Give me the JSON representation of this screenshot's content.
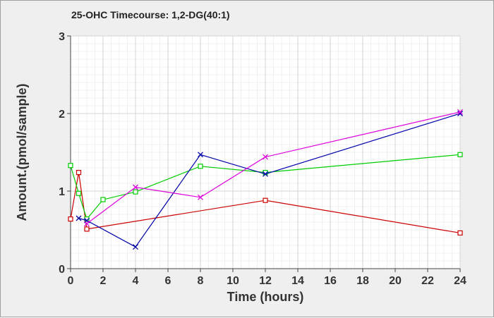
{
  "chart_data": {
    "type": "line",
    "title": "25-OHC Timecourse: 1,2-DG(40:1)",
    "xlabel": "Time (hours)",
    "ylabel": "Amount.(pmol/sample)",
    "xlim": [
      0,
      24
    ],
    "ylim": [
      0,
      3
    ],
    "xticks": [
      0,
      2,
      4,
      6,
      8,
      10,
      12,
      14,
      16,
      18,
      20,
      22,
      24
    ],
    "yticks": [
      0,
      1,
      2,
      3
    ],
    "grid": true,
    "legend": "none",
    "series": [
      {
        "color": "#cc0000",
        "marker": "square",
        "points": [
          [
            0,
            0.64
          ],
          [
            0.5,
            1.24
          ],
          [
            1,
            0.51
          ],
          [
            12,
            0.88
          ],
          [
            24,
            0.46
          ]
        ]
      },
      {
        "color": "#00cc00",
        "marker": "square",
        "points": [
          [
            0,
            1.33
          ],
          [
            0.5,
            0.97
          ],
          [
            1,
            0.64
          ],
          [
            2,
            0.89
          ],
          [
            4,
            0.99
          ],
          [
            8,
            1.32
          ],
          [
            12,
            1.24
          ],
          [
            24,
            1.47
          ]
        ]
      },
      {
        "color": "#0000aa",
        "marker": "x",
        "points": [
          [
            0.5,
            0.65
          ],
          [
            1,
            0.62
          ],
          [
            4,
            0.28
          ],
          [
            8,
            1.47
          ],
          [
            12,
            1.22
          ],
          [
            24,
            2.0
          ]
        ]
      },
      {
        "color": "#dd00dd",
        "marker": "x",
        "points": [
          [
            1,
            0.58
          ],
          [
            4,
            1.05
          ],
          [
            8,
            0.92
          ],
          [
            12,
            1.44
          ],
          [
            24,
            2.02
          ]
        ]
      }
    ]
  }
}
